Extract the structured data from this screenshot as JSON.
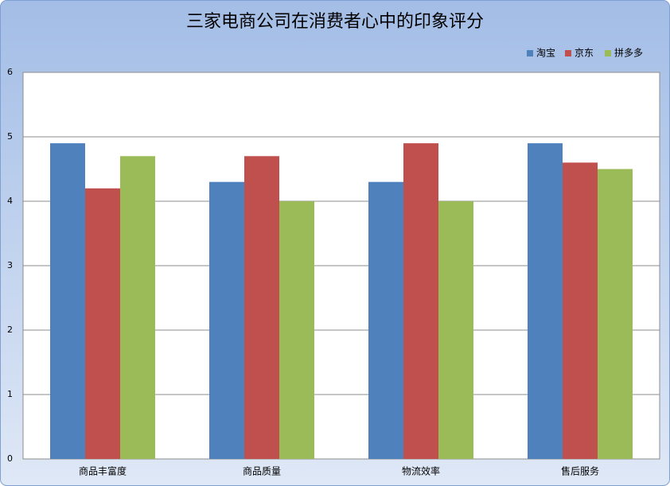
{
  "chart_data": {
    "type": "bar",
    "title": "三家电商公司在消费者心中的印象评分",
    "categories": [
      "商品丰富度",
      "商品质量",
      "物流效率",
      "售后服务"
    ],
    "series": [
      {
        "name": "淘宝",
        "color": "#4f81bd",
        "values": [
          4.9,
          4.3,
          4.3,
          4.9
        ]
      },
      {
        "name": "京东",
        "color": "#c0504d",
        "values": [
          4.2,
          4.7,
          4.9,
          4.6
        ]
      },
      {
        "name": "拼多多",
        "color": "#9bbb59",
        "values": [
          4.7,
          4.0,
          4.0,
          4.5
        ]
      }
    ],
    "ylim": [
      0,
      6
    ],
    "yticks": [
      0,
      1,
      2,
      3,
      4,
      5,
      6
    ],
    "grid": true,
    "legend": "top-right"
  }
}
